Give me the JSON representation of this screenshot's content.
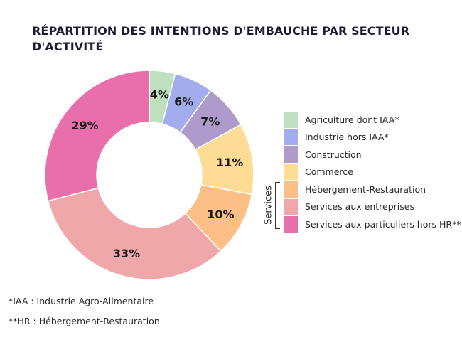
{
  "chart_data": {
    "type": "pie",
    "variant": "donut",
    "title": "RÉPARTITION DES INTENTIONS D'EMBAUCHE PAR SECTEUR D'ACTIVITÉ",
    "title_lines": [
      "RÉPARTITION DES INTENTIONS D'EMBAUCHE PAR SECTEUR",
      "D'ACTIVITÉ"
    ],
    "start_angle": "12 o'clock",
    "direction": "clockwise",
    "slices": [
      {
        "name": "Agriculture dont IAA*",
        "value": 4,
        "label": "4%",
        "color": "#bfe0bf"
      },
      {
        "name": "Industrie hors IAA*",
        "value": 6,
        "label": "6%",
        "color": "#a3aced"
      },
      {
        "name": "Construction",
        "value": 7,
        "label": "7%",
        "color": "#ae9bcb"
      },
      {
        "name": "Commerce",
        "value": 11,
        "label": "11%",
        "color": "#fddd95"
      },
      {
        "name": "Hébergement-Restauration",
        "value": 10,
        "label": "10%",
        "color": "#fcbf85"
      },
      {
        "name": "Services aux entreprises",
        "value": 33,
        "label": "33%",
        "color": "#f0a7a9"
      },
      {
        "name": "Services aux particuliers hors HR**",
        "value": 29,
        "label": "29%",
        "color": "#e96eac"
      }
    ],
    "legend": {
      "placement": "right",
      "entries": [
        "Agriculture dont IAA*",
        "Industrie hors IAA*",
        "Construction",
        "Commerce",
        "Hébergement-Restauration",
        "Services aux entreprises",
        "Services aux particuliers hors HR**"
      ],
      "group_bracket": {
        "label": "Services",
        "covers": [
          "Hébergement-Restauration",
          "Services aux entreprises",
          "Services aux particuliers hors HR**"
        ]
      }
    }
  },
  "footnotes": [
    "*IAA : Industrie Agro-Alimentaire",
    "**HR : Hébergement-Restauration"
  ]
}
